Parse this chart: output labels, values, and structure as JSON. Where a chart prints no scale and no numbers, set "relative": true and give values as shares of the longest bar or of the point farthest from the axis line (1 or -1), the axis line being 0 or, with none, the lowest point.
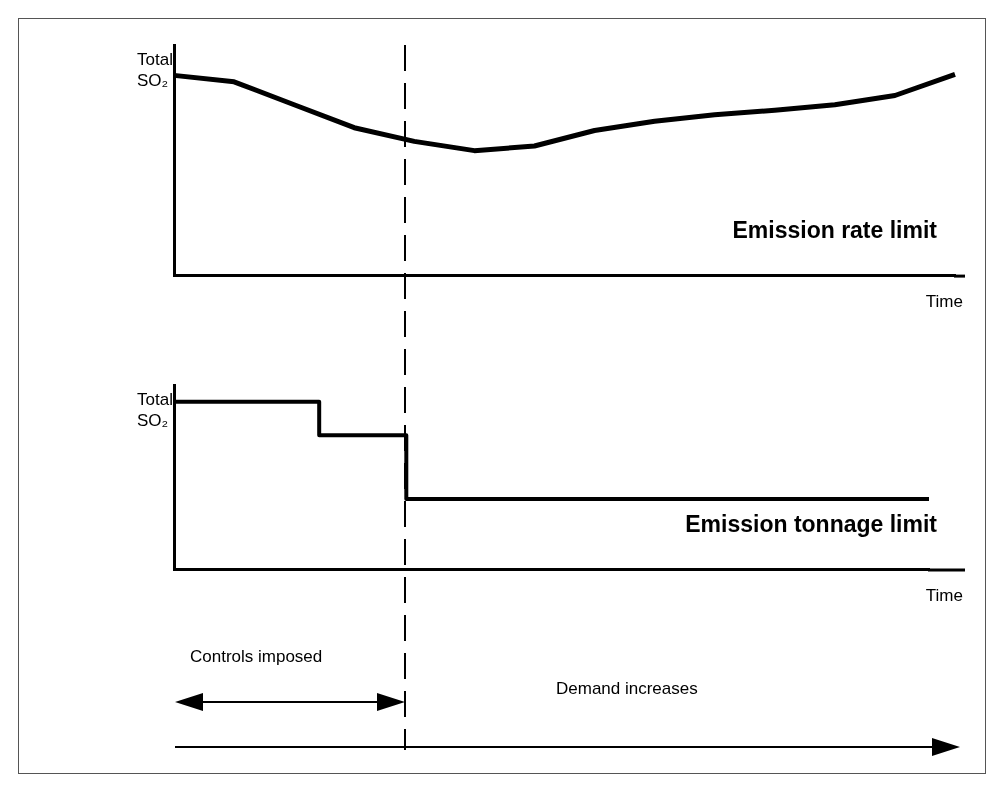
{
  "chart_data": [
    {
      "type": "line",
      "ylabel": "Total SO₂",
      "xlabel": "Time",
      "relative": true,
      "categories": [
        null,
        null,
        null,
        null,
        null,
        null,
        null,
        null,
        null,
        null,
        null,
        null,
        null,
        null
      ],
      "series": [
        {
          "name": "Emission rate limit",
          "color": "#000000",
          "values": [
            0.995,
            0.963,
            0.849,
            0.735,
            0.667,
            0.621,
            0.644,
            0.721,
            0.767,
            0.799,
            0.822,
            0.849,
            0.895,
            1
          ]
        }
      ]
    },
    {
      "type": "step",
      "ylabel": "Total SO₂",
      "xlabel": "Time",
      "relative": true,
      "categories": [
        null,
        null,
        null,
        null,
        null,
        null,
        null,
        null,
        null,
        null,
        null,
        null,
        null,
        null,
        null,
        null,
        null,
        null,
        null,
        null,
        null,
        null,
        null,
        null,
        null,
        null,
        null
      ],
      "series": [
        {
          "name": "Emission tonnage limit",
          "color": "#000000",
          "values": [
            1,
            1,
            1,
            1,
            1,
            0.8,
            0.8,
            0.8,
            0.42,
            0.42,
            0.42,
            0.42,
            0.42,
            0.42,
            0.42,
            0.42,
            0.42,
            0.42,
            0.42,
            0.42,
            0.42,
            0.42,
            0.42,
            0.42,
            0.42,
            0.42,
            0.42
          ]
        }
      ],
      "annotations": [
        "Controls imposed",
        "Demand increases"
      ]
    }
  ]
}
